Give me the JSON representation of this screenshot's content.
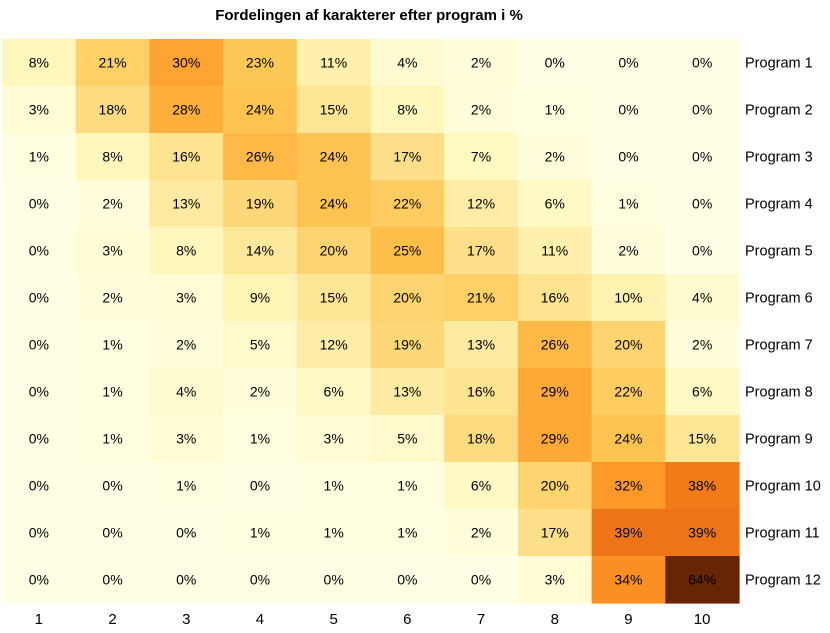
{
  "chart_data": {
    "type": "heatmap",
    "title": "Fordelingen af karakterer efter program i %",
    "xlabel": "",
    "ylabel": "",
    "x_categories": [
      "1",
      "2",
      "3",
      "4",
      "5",
      "6",
      "7",
      "8",
      "9",
      "10"
    ],
    "y_categories": [
      "Program 1",
      "Program 2",
      "Program 3",
      "Program 4",
      "Program 5",
      "Program 6",
      "Program 7",
      "Program 8",
      "Program 9",
      "Program 10",
      "Program 11",
      "Program 12"
    ],
    "value_suffix": "%",
    "values": [
      [
        8,
        21,
        30,
        23,
        11,
        4,
        2,
        0,
        0,
        0
      ],
      [
        3,
        18,
        28,
        24,
        15,
        8,
        2,
        1,
        0,
        0
      ],
      [
        1,
        8,
        16,
        26,
        24,
        17,
        7,
        2,
        0,
        0
      ],
      [
        0,
        2,
        13,
        19,
        24,
        22,
        12,
        6,
        1,
        0
      ],
      [
        0,
        3,
        8,
        14,
        20,
        25,
        17,
        11,
        2,
        0
      ],
      [
        0,
        2,
        3,
        9,
        15,
        20,
        21,
        16,
        10,
        4
      ],
      [
        0,
        1,
        2,
        5,
        12,
        19,
        13,
        26,
        20,
        2
      ],
      [
        0,
        1,
        4,
        2,
        6,
        13,
        16,
        29,
        22,
        6
      ],
      [
        0,
        1,
        3,
        1,
        3,
        5,
        18,
        29,
        24,
        15
      ],
      [
        0,
        0,
        1,
        0,
        1,
        1,
        6,
        20,
        32,
        38
      ],
      [
        0,
        0,
        0,
        1,
        1,
        1,
        2,
        17,
        39,
        39
      ],
      [
        0,
        0,
        0,
        0,
        0,
        0,
        0,
        3,
        34,
        64
      ]
    ],
    "color_scale": {
      "name": "YlOrBr",
      "domain": [
        0,
        64
      ],
      "colors": [
        "#FFFFE5",
        "#FFF7BC",
        "#FEE391",
        "#FEC44F",
        "#FE9929",
        "#EC7014",
        "#CC4C02",
        "#993404",
        "#662506"
      ]
    },
    "row_label_position": "right",
    "col_label_position": "bottom",
    "legend": "none",
    "grid": false
  }
}
